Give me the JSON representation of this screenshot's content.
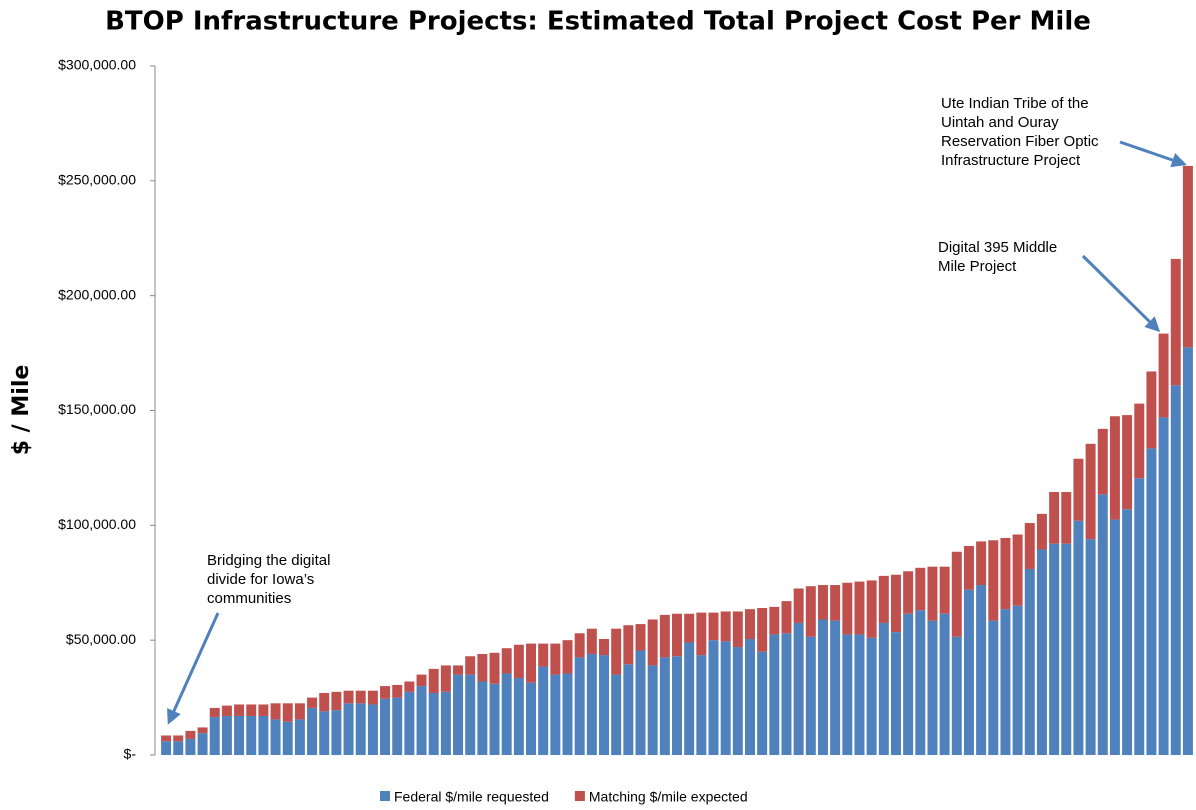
{
  "chart_data": {
    "type": "stacked_bar",
    "title": "BTOP Infrastructure Projects: Estimated Total Project Cost Per Mile",
    "y_label": "$ / Mile",
    "ylim": [
      0,
      300000
    ],
    "yticks": [
      {
        "value": 0,
        "label": "$-"
      },
      {
        "value": 50000,
        "label": "$50,000.00"
      },
      {
        "value": 100000,
        "label": "$100,000.00"
      },
      {
        "value": 150000,
        "label": "$150,000.00"
      },
      {
        "value": 200000,
        "label": "$200,000.00"
      },
      {
        "value": 250000,
        "label": "$250,000.00"
      },
      {
        "value": 300000,
        "label": "$300,000.00"
      }
    ],
    "legend": "bottom",
    "series": [
      {
        "name": "Federal $/mile requested",
        "color": "#4f81bd",
        "values": [
          6000,
          6000,
          7000,
          9500,
          16500,
          17000,
          17000,
          17000,
          17000,
          15500,
          14500,
          15500,
          20500,
          19000,
          19500,
          22500,
          22500,
          22000,
          24500,
          25000,
          27500,
          30000,
          27000,
          27500,
          35000,
          35000,
          32000,
          31000,
          35500,
          33500,
          31500,
          38500,
          35000,
          35500,
          42500,
          44000,
          43500,
          35000,
          39500,
          45500,
          39000,
          42500,
          43000,
          49000,
          43500,
          50000,
          49500,
          47000,
          50500,
          45000,
          52500,
          53000,
          57500,
          51500,
          59000,
          58500,
          52500,
          52500,
          51000,
          57500,
          53500,
          61500,
          63000,
          58500,
          61500,
          51500,
          72000,
          74000,
          58500,
          63500,
          65000,
          81000,
          89500,
          92000,
          92000,
          102000,
          94000,
          113500,
          102500,
          107000,
          120500,
          133500,
          147000,
          161000,
          177500
        ]
      },
      {
        "name": "Matching $/mile expected",
        "color": "#c0504d",
        "values": [
          2500,
          2500,
          3500,
          2500,
          4000,
          4500,
          5000,
          5000,
          5000,
          7000,
          8000,
          7000,
          4500,
          8000,
          8000,
          5500,
          5500,
          6000,
          5500,
          5500,
          4500,
          5000,
          10500,
          11500,
          4000,
          8000,
          12000,
          13500,
          11000,
          14500,
          17000,
          10000,
          13500,
          14500,
          10500,
          11000,
          7000,
          20000,
          17000,
          11500,
          20000,
          18500,
          18500,
          12500,
          18500,
          12000,
          13000,
          15500,
          13000,
          19000,
          12000,
          14000,
          15000,
          22000,
          15000,
          15500,
          22500,
          23000,
          25000,
          20500,
          25000,
          18500,
          18500,
          23500,
          20500,
          37000,
          19000,
          19000,
          35000,
          31000,
          31000,
          20000,
          15500,
          22500,
          22500,
          27000,
          41500,
          28500,
          45000,
          41000,
          32500,
          33500,
          36500,
          55000,
          79000
        ]
      }
    ],
    "annotations": [
      {
        "lines": [
          "Bridging the digital",
          "divide for Iowa’s",
          "communities"
        ]
      },
      {
        "lines": [
          "Digital 395 Middle",
          "Mile Project"
        ]
      },
      {
        "lines": [
          "Ute Indian Tribe of the",
          "Uintah and Ouray",
          "Reservation Fiber Optic",
          "Infrastructure Project"
        ]
      }
    ]
  }
}
